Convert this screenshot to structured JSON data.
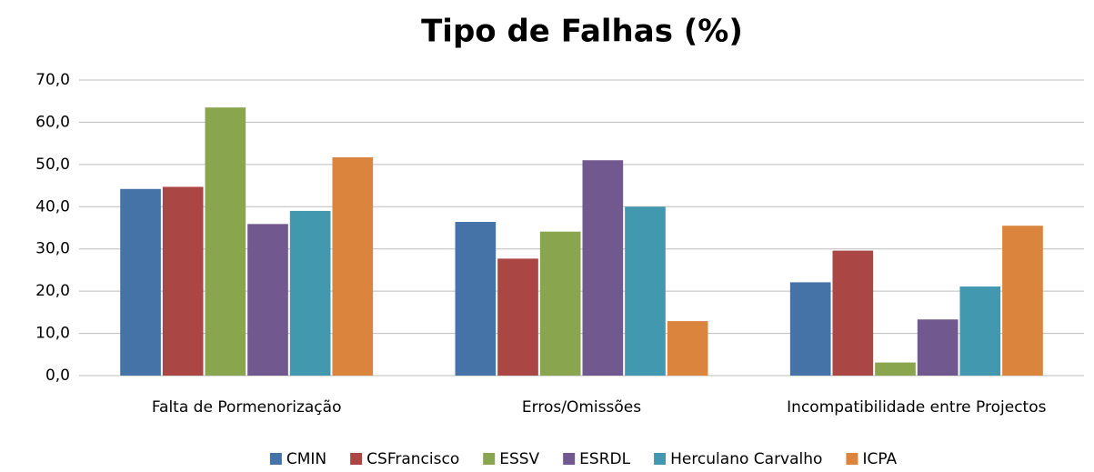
{
  "chart_data": {
    "type": "bar",
    "title": "Tipo de Falhas (%)",
    "categories": [
      "Falta de Pormenorização",
      "Erros/Omissões",
      "Incompatibilidade entre Projectos"
    ],
    "series": [
      {
        "name": "CMIN",
        "color": "#4572a7",
        "values": [
          44.2,
          36.4,
          22.1
        ]
      },
      {
        "name": "CSFrancisco",
        "color": "#aa4643",
        "values": [
          44.7,
          27.7,
          29.6
        ]
      },
      {
        "name": "ESSV",
        "color": "#89a54e",
        "values": [
          63.5,
          34.1,
          3.1
        ]
      },
      {
        "name": "ESRDL",
        "color": "#71588f",
        "values": [
          35.9,
          51.0,
          13.3
        ]
      },
      {
        "name": "Herculano Carvalho",
        "color": "#4198af",
        "values": [
          39.0,
          40.0,
          21.1
        ]
      },
      {
        "name": "ICPA",
        "color": "#db843d",
        "values": [
          51.7,
          12.9,
          35.5
        ]
      }
    ],
    "ylim": [
      0,
      70
    ],
    "yticks": [
      {
        "value": 0,
        "label": "0,0"
      },
      {
        "value": 10,
        "label": "10,0"
      },
      {
        "value": 20,
        "label": "20,0"
      },
      {
        "value": 30,
        "label": "30,0"
      },
      {
        "value": 40,
        "label": "40,0"
      },
      {
        "value": 50,
        "label": "50,0"
      },
      {
        "value": 60,
        "label": "60,0"
      },
      {
        "value": 70,
        "label": "70,0"
      }
    ],
    "grid": true,
    "legend": "bottom"
  }
}
